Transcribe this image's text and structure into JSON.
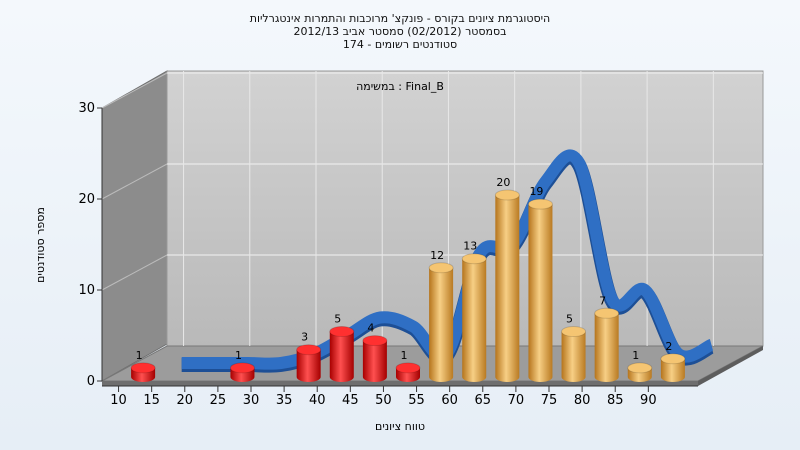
{
  "chart_data": {
    "type": "bar",
    "title_lines": [
      "היסטוגרמת ציונים בקורס - פונקצ' מרוכבות והתמרות אינטגרליות",
      "בסמסטר  (02/2012)  סמסטר אביב 2012/13",
      "סטודנטים רשומים - 174"
    ],
    "subtitle": "במשימה : Final_B",
    "xlabel": "טווח ציונים",
    "ylabel": "מספר סטודנטים",
    "ylim": [
      0,
      30
    ],
    "yticks": [
      0,
      10,
      20,
      30
    ],
    "xticks": [
      10,
      15,
      20,
      25,
      30,
      35,
      40,
      45,
      50,
      55,
      60,
      65,
      70,
      75,
      80,
      85,
      90
    ],
    "bars": [
      {
        "x": 12.5,
        "value": 1,
        "group": "fail"
      },
      {
        "x": 27.5,
        "value": 1,
        "group": "fail"
      },
      {
        "x": 37.5,
        "value": 3,
        "group": "fail"
      },
      {
        "x": 42.5,
        "value": 5,
        "group": "fail"
      },
      {
        "x": 47.5,
        "value": 4,
        "group": "fail"
      },
      {
        "x": 52.5,
        "value": 1,
        "group": "fail"
      },
      {
        "x": 57.5,
        "value": 12,
        "group": "pass"
      },
      {
        "x": 62.5,
        "value": 13,
        "group": "pass"
      },
      {
        "x": 67.5,
        "value": 20,
        "group": "pass"
      },
      {
        "x": 72.5,
        "value": 19,
        "group": "pass"
      },
      {
        "x": 77.5,
        "value": 5,
        "group": "pass"
      },
      {
        "x": 82.5,
        "value": 7,
        "group": "pass"
      },
      {
        "x": 87.5,
        "value": 1,
        "group": "pass"
      },
      {
        "x": 92.5,
        "value": 2,
        "group": "pass"
      }
    ],
    "curve": {
      "x": [
        15,
        20,
        25,
        30,
        35,
        40,
        45,
        50,
        55,
        60,
        65,
        70,
        75,
        80,
        85,
        90,
        95
      ],
      "y": [
        0,
        0,
        0,
        0,
        1,
        3,
        5,
        4,
        1,
        12,
        13,
        20,
        22,
        7,
        8,
        1,
        2
      ]
    },
    "grid": true,
    "colors": {
      "fail": "#dd1111",
      "pass": "#e8a53c",
      "curve": "#2f6fc4",
      "floor": "#9a9a9a",
      "back_wall": "#c8c8c8",
      "side_wall": "#8a8a8a"
    }
  }
}
